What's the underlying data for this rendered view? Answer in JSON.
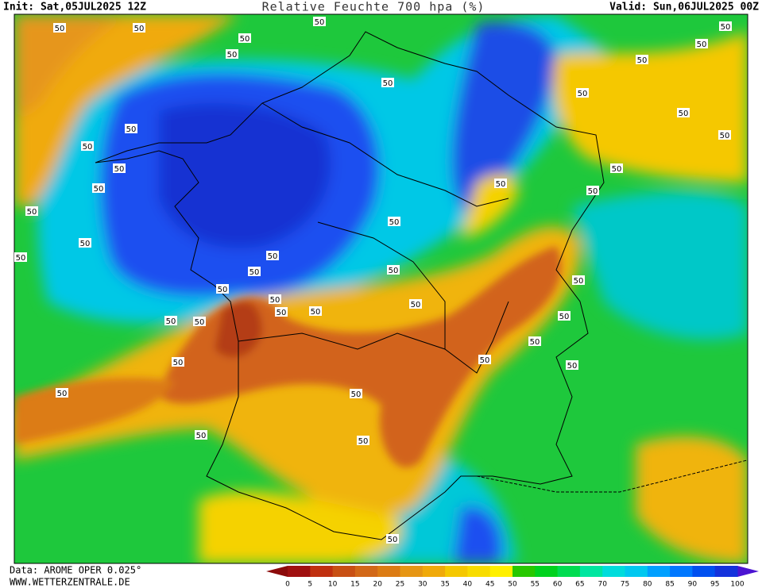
{
  "header": {
    "init": "Init: Sat,05JUL2025 12Z",
    "title": "Relative Feuchte 700 hpa (%)",
    "valid": "Valid: Sun,06JUL2025 00Z"
  },
  "footer": {
    "data": "Data: AROME OPER 0.025°",
    "site": "WWW.WETTERZENTRALE.DE"
  },
  "colorbar": {
    "ticks": [
      0,
      5,
      10,
      15,
      20,
      25,
      30,
      35,
      40,
      45,
      50,
      55,
      60,
      65,
      70,
      75,
      80,
      85,
      90,
      95,
      100
    ],
    "colors": [
      "#a01010",
      "#c03010",
      "#c85014",
      "#d26818",
      "#dc7c14",
      "#e69614",
      "#f0aa0a",
      "#f5c800",
      "#f8dc00",
      "#fff000",
      "#28c800",
      "#00d21e",
      "#00dc50",
      "#00e6a0",
      "#00dcdc",
      "#00c8f0",
      "#00a0ff",
      "#0078ff",
      "#0050f0",
      "#1432dc"
    ]
  },
  "map": {
    "contour_labels": [
      "50",
      "50",
      "50",
      "50",
      "50",
      "50",
      "50",
      "50",
      "50",
      "50",
      "50",
      "50",
      "50",
      "50",
      "50",
      "50",
      "50",
      "50",
      "50",
      "50",
      "50",
      "50",
      "50",
      "50",
      "50",
      "50",
      "50",
      "50",
      "50",
      "50",
      "50",
      "50",
      "50",
      "50",
      "50",
      "50",
      "50",
      "50",
      "50",
      "50",
      "50",
      "50",
      "50",
      "50"
    ]
  }
}
